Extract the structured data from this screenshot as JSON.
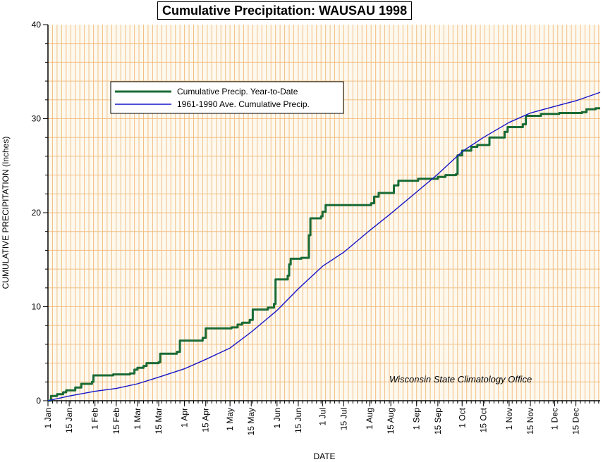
{
  "chart_data": {
    "type": "line",
    "title": "Cumulative Precipitation: WAUSAU 1998",
    "xlabel": "DATE",
    "ylabel": "CUMULATIVE PRECIPITATION (Inches)",
    "ylim": [
      0,
      40
    ],
    "xlim": [
      "1998-01-01",
      "1998-12-31"
    ],
    "yticks": [
      0,
      10,
      20,
      30,
      40
    ],
    "grid": true,
    "legend_position": "top-left",
    "xticks": [
      {
        "label": "1 Jan",
        "date": "1998-01-01"
      },
      {
        "label": "15 Jan",
        "date": "1998-01-15"
      },
      {
        "label": "1 Feb",
        "date": "1998-02-01"
      },
      {
        "label": "15 Feb",
        "date": "1998-02-15"
      },
      {
        "label": "1 Mar",
        "date": "1998-03-01"
      },
      {
        "label": "15 Mar",
        "date": "1998-03-15"
      },
      {
        "label": "1 Apr",
        "date": "1998-04-01"
      },
      {
        "label": "15 Apr",
        "date": "1998-04-15"
      },
      {
        "label": "1 May",
        "date": "1998-05-01"
      },
      {
        "label": "15 May",
        "date": "1998-05-15"
      },
      {
        "label": "1 Jun",
        "date": "1998-06-01"
      },
      {
        "label": "15 Jun",
        "date": "1998-06-15"
      },
      {
        "label": "1 Jul",
        "date": "1998-07-01"
      },
      {
        "label": "15 Jul",
        "date": "1998-07-15"
      },
      {
        "label": "1 Aug",
        "date": "1998-08-01"
      },
      {
        "label": "15 Aug",
        "date": "1998-08-15"
      },
      {
        "label": "1 Sep",
        "date": "1998-09-01"
      },
      {
        "label": "15 Sep",
        "date": "1998-09-15"
      },
      {
        "label": "1 Oct",
        "date": "1998-10-01"
      },
      {
        "label": "15 Oct",
        "date": "1998-10-15"
      },
      {
        "label": "1 Nov",
        "date": "1998-11-01"
      },
      {
        "label": "15 Nov",
        "date": "1998-11-15"
      },
      {
        "label": "1 Dec",
        "date": "1998-12-01"
      },
      {
        "label": "15 Dec",
        "date": "1998-12-15"
      }
    ],
    "series": [
      {
        "name": "Cumulative Precip. Year-to-Date",
        "color": "#1a6b35",
        "step": true,
        "points": [
          [
            "1998-01-01",
            0.0
          ],
          [
            "1998-01-03",
            0.5
          ],
          [
            "1998-01-07",
            0.7
          ],
          [
            "1998-01-11",
            0.9
          ],
          [
            "1998-01-13",
            1.1
          ],
          [
            "1998-01-19",
            1.4
          ],
          [
            "1998-01-23",
            1.8
          ],
          [
            "1998-01-30",
            2.0
          ],
          [
            "1998-01-31",
            2.7
          ],
          [
            "1998-02-13",
            2.8
          ],
          [
            "1998-02-24",
            2.9
          ],
          [
            "1998-02-27",
            3.3
          ],
          [
            "1998-03-01",
            3.5
          ],
          [
            "1998-03-05",
            3.7
          ],
          [
            "1998-03-07",
            4.0
          ],
          [
            "1998-03-15",
            4.1
          ],
          [
            "1998-03-16",
            5.0
          ],
          [
            "1998-03-27",
            5.2
          ],
          [
            "1998-03-29",
            6.4
          ],
          [
            "1998-04-13",
            6.7
          ],
          [
            "1998-04-15",
            7.7
          ],
          [
            "1998-05-02",
            7.8
          ],
          [
            "1998-05-06",
            8.1
          ],
          [
            "1998-05-09",
            8.3
          ],
          [
            "1998-05-14",
            8.6
          ],
          [
            "1998-05-16",
            9.7
          ],
          [
            "1998-05-26",
            9.9
          ],
          [
            "1998-05-30",
            10.3
          ],
          [
            "1998-05-31",
            12.9
          ],
          [
            "1998-06-08",
            13.3
          ],
          [
            "1998-06-09",
            14.5
          ],
          [
            "1998-06-10",
            15.1
          ],
          [
            "1998-06-17",
            15.2
          ],
          [
            "1998-06-22",
            17.6
          ],
          [
            "1998-06-23",
            19.4
          ],
          [
            "1998-06-30",
            19.6
          ],
          [
            "1998-07-01",
            20.1
          ],
          [
            "1998-07-03",
            20.8
          ],
          [
            "1998-08-02",
            21.0
          ],
          [
            "1998-08-04",
            21.7
          ],
          [
            "1998-08-07",
            22.1
          ],
          [
            "1998-08-17",
            22.9
          ],
          [
            "1998-08-20",
            23.4
          ],
          [
            "1998-09-02",
            23.6
          ],
          [
            "1998-09-15",
            23.8
          ],
          [
            "1998-09-20",
            24.0
          ],
          [
            "1998-09-27",
            24.1
          ],
          [
            "1998-09-28",
            26.1
          ],
          [
            "1998-10-01",
            26.6
          ],
          [
            "1998-10-07",
            27.0
          ],
          [
            "1998-10-11",
            27.2
          ],
          [
            "1998-10-19",
            28.0
          ],
          [
            "1998-10-29",
            28.6
          ],
          [
            "1998-10-31",
            29.1
          ],
          [
            "1998-11-10",
            29.4
          ],
          [
            "1998-11-12",
            30.3
          ],
          [
            "1998-11-22",
            30.5
          ],
          [
            "1998-12-04",
            30.6
          ],
          [
            "1998-12-19",
            30.7
          ],
          [
            "1998-12-22",
            31.0
          ],
          [
            "1998-12-28",
            31.1
          ],
          [
            "1998-12-31",
            31.1
          ]
        ]
      },
      {
        "name": "1961-1990 Ave. Cumulative Precip.",
        "color": "#1515c8",
        "step": false,
        "points": [
          [
            "1998-01-01",
            0.0
          ],
          [
            "1998-01-15",
            0.5
          ],
          [
            "1998-02-01",
            1.0
          ],
          [
            "1998-02-15",
            1.3
          ],
          [
            "1998-03-01",
            1.8
          ],
          [
            "1998-03-15",
            2.5
          ],
          [
            "1998-04-01",
            3.4
          ],
          [
            "1998-04-15",
            4.4
          ],
          [
            "1998-05-01",
            5.6
          ],
          [
            "1998-05-15",
            7.3
          ],
          [
            "1998-06-01",
            9.6
          ],
          [
            "1998-06-15",
            11.9
          ],
          [
            "1998-07-01",
            14.3
          ],
          [
            "1998-07-15",
            15.8
          ],
          [
            "1998-08-01",
            18.1
          ],
          [
            "1998-08-15",
            19.9
          ],
          [
            "1998-09-01",
            22.2
          ],
          [
            "1998-09-15",
            24.1
          ],
          [
            "1998-10-01",
            26.5
          ],
          [
            "1998-10-15",
            28.0
          ],
          [
            "1998-11-01",
            29.6
          ],
          [
            "1998-11-15",
            30.6
          ],
          [
            "1998-12-01",
            31.3
          ],
          [
            "1998-12-15",
            31.9
          ],
          [
            "1998-12-31",
            32.8
          ]
        ]
      }
    ],
    "annotations": [
      "Wisconsin State Climatology Office"
    ]
  }
}
